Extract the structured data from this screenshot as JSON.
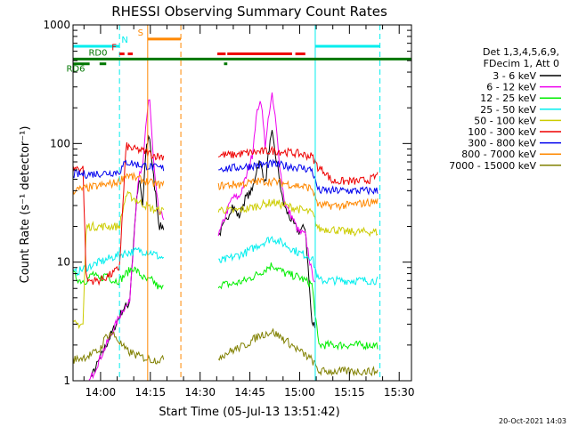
{
  "footer_timestamp": "20-Oct-2021 14:03",
  "chart_data": {
    "type": "line",
    "title": "RHESSI Observing Summary Count Rates",
    "xlabel": "Start Time (05-Jul-13 13:51:42)",
    "ylabel": "Count Rate (s⁻¹ detector⁻¹)",
    "yscale": "log",
    "ylim": [
      1,
      1000
    ],
    "y_ticks": [
      {
        "value": 1,
        "label": "1"
      },
      {
        "value": 10,
        "label": "10"
      },
      {
        "value": 100,
        "label": "100"
      },
      {
        "value": 1000,
        "label": "1000"
      }
    ],
    "x_unit": "minutes after 13:51:42",
    "xlim": [
      0,
      102
    ],
    "x_ticks": [
      {
        "value": 8.3,
        "label": "14:00"
      },
      {
        "value": 23.3,
        "label": "14:15"
      },
      {
        "value": 38.3,
        "label": "14:30"
      },
      {
        "value": 53.3,
        "label": "14:45"
      },
      {
        "value": 68.3,
        "label": "15:00"
      },
      {
        "value": 83.3,
        "label": "15:15"
      },
      {
        "value": 98.3,
        "label": "15:30"
      }
    ],
    "legend": {
      "position": "right",
      "header": [
        "Det 1,3,4,5,6,9,",
        "FDecim 1, Att 0"
      ]
    },
    "gaps": [
      [
        27.5,
        43.5
      ]
    ],
    "series": [
      {
        "name": "3 - 6 keV",
        "color": "#000000",
        "x": [
          0,
          15,
          17,
          19,
          20,
          21,
          22,
          23,
          24,
          25,
          26,
          44,
          46,
          48,
          50,
          52,
          54,
          55,
          56,
          57,
          58,
          59,
          60,
          61,
          62,
          63,
          64,
          66,
          68,
          70,
          72,
          73
        ],
        "values": [
          0,
          4,
          4.5,
          30,
          50,
          30,
          90,
          120,
          60,
          35,
          20,
          17,
          22,
          30,
          24,
          35,
          40,
          55,
          70,
          60,
          45,
          90,
          120,
          80,
          55,
          35,
          28,
          22,
          18,
          20,
          3,
          3
        ]
      },
      {
        "name": "6 - 12 keV",
        "color": "#ee00ee",
        "x": [
          0,
          15,
          17,
          19,
          20,
          21,
          22,
          23,
          24,
          25,
          26,
          44,
          46,
          48,
          50,
          52,
          54,
          55,
          56,
          57,
          58,
          59,
          60,
          61,
          62,
          63,
          64,
          66,
          68,
          70,
          72,
          73
        ],
        "values": [
          0,
          4,
          4.5,
          30,
          55,
          60,
          150,
          260,
          90,
          40,
          25,
          17,
          25,
          35,
          35,
          50,
          80,
          150,
          220,
          200,
          90,
          180,
          250,
          160,
          80,
          45,
          30,
          24,
          18,
          17,
          8,
          7
        ]
      },
      {
        "name": "12 - 25 keV",
        "color": "#00ee00",
        "x": [
          0,
          2,
          4,
          6,
          8,
          10,
          12,
          14,
          16,
          18,
          20,
          22,
          24,
          26,
          44,
          48,
          52,
          56,
          60,
          64,
          68,
          72,
          74,
          78,
          82,
          86,
          90,
          92
        ],
        "values": [
          8,
          7,
          7,
          8,
          7,
          8,
          7,
          7,
          8,
          9,
          8,
          7,
          7,
          6,
          6.5,
          6.5,
          7,
          8,
          9.5,
          8,
          7.5,
          6.5,
          2,
          2,
          2,
          2,
          2,
          2
        ]
      },
      {
        "name": "25 - 50 keV",
        "color": "#00eeee",
        "x": [
          0,
          4,
          8,
          12,
          16,
          20,
          24,
          26,
          44,
          48,
          52,
          56,
          60,
          64,
          68,
          72,
          74,
          78,
          82,
          86,
          90,
          92
        ],
        "values": [
          8,
          9,
          10,
          11,
          12,
          12.5,
          12,
          11,
          10,
          11,
          12,
          14,
          16,
          14,
          12,
          11,
          7,
          7,
          7,
          7,
          7,
          7
        ]
      },
      {
        "name": "50 - 100 keV",
        "color": "#cccc00",
        "x": [
          0,
          3,
          4,
          8,
          12,
          14,
          16,
          18,
          20,
          22,
          24,
          26,
          44,
          48,
          52,
          56,
          60,
          64,
          68,
          72,
          74,
          78,
          82,
          86,
          90,
          92
        ],
        "values": [
          3,
          3,
          20,
          20,
          20,
          20,
          37,
          35,
          32,
          30,
          28,
          27,
          28,
          27,
          28,
          30,
          32,
          30,
          28,
          26,
          19,
          19,
          18,
          18,
          18,
          18
        ]
      },
      {
        "name": "100 - 300 keV",
        "color": "#ee0000",
        "x": [
          0,
          3,
          4,
          8,
          12,
          14,
          16,
          18,
          20,
          22,
          24,
          26,
          44,
          48,
          52,
          56,
          60,
          64,
          68,
          72,
          74,
          76,
          78,
          82,
          86,
          90,
          92
        ],
        "values": [
          62,
          62,
          7,
          7,
          8,
          9,
          95,
          90,
          88,
          85,
          80,
          78,
          80,
          80,
          83,
          85,
          87,
          85,
          82,
          78,
          62,
          58,
          48,
          48,
          48,
          50,
          55
        ]
      },
      {
        "name": "300 - 800 keV",
        "color": "#0000ee",
        "x": [
          0,
          4,
          8,
          12,
          14,
          16,
          18,
          20,
          22,
          24,
          26,
          44,
          48,
          52,
          56,
          60,
          64,
          68,
          72,
          74,
          78,
          82,
          86,
          90,
          92
        ],
        "values": [
          55,
          55,
          56,
          57,
          58,
          70,
          68,
          66,
          65,
          63,
          62,
          62,
          62,
          64,
          66,
          67,
          65,
          63,
          60,
          40,
          40,
          40,
          40,
          40,
          40
        ]
      },
      {
        "name": "800 - 7000 keV",
        "color": "#ff8800",
        "x": [
          0,
          4,
          8,
          12,
          14,
          16,
          18,
          20,
          22,
          24,
          26,
          44,
          48,
          52,
          56,
          60,
          64,
          68,
          72,
          74,
          78,
          82,
          86,
          90,
          92
        ],
        "values": [
          40,
          42,
          44,
          46,
          48,
          55,
          52,
          50,
          48,
          46,
          45,
          44,
          45,
          46,
          48,
          48,
          46,
          44,
          42,
          30,
          30,
          30,
          31,
          32,
          33
        ]
      },
      {
        "name": "7000 - 15000 keV",
        "color": "#808000",
        "x": [
          0,
          4,
          8,
          10,
          12,
          16,
          20,
          24,
          26,
          44,
          48,
          52,
          56,
          60,
          64,
          68,
          72,
          74,
          78,
          82,
          86,
          90,
          92
        ],
        "values": [
          1.5,
          1.6,
          1.8,
          2.4,
          2.5,
          1.8,
          1.6,
          1.5,
          1.5,
          1.6,
          1.8,
          2,
          2.4,
          2.6,
          2.2,
          1.8,
          1.5,
          1.2,
          1.2,
          1.2,
          1.2,
          1.2,
          1.2
        ]
      }
    ],
    "vertical_markers": [
      {
        "x": 0,
        "color": "#00eeee",
        "style": "solid"
      },
      {
        "x": 14,
        "color": "#00eeee",
        "style": "dashed"
      },
      {
        "x": 22.5,
        "color": "#ff8800",
        "style": "solid"
      },
      {
        "x": 32.5,
        "color": "#ff8800",
        "style": "dashed"
      },
      {
        "x": 73,
        "color": "#00eeee",
        "style": "solid"
      },
      {
        "x": 92.5,
        "color": "#00eeee",
        "style": "dashed"
      }
    ],
    "flag_bars": [
      {
        "label": "N",
        "color": "#00eeee",
        "level": 660,
        "segments": [
          [
            0,
            14
          ],
          [
            73,
            92.5
          ]
        ]
      },
      {
        "label": "F",
        "color": "#ee0000",
        "level": 570,
        "segments": [
          [
            14,
            15.5
          ],
          [
            16.5,
            18
          ],
          [
            43.5,
            46
          ],
          [
            46.5,
            66
          ],
          [
            67,
            70
          ]
        ]
      },
      {
        "label": "S",
        "color": "#ff8800",
        "level": 760,
        "segments": [
          [
            22.5,
            32.5
          ]
        ]
      },
      {
        "label": "RD0",
        "color": "#007700",
        "level": 515,
        "segments": [
          [
            0,
            102
          ]
        ]
      },
      {
        "label": "RD6",
        "color": "#007700",
        "level": 470,
        "segments": [
          [
            0,
            5
          ],
          [
            8,
            10
          ],
          [
            45.5,
            46.5
          ]
        ]
      }
    ]
  }
}
